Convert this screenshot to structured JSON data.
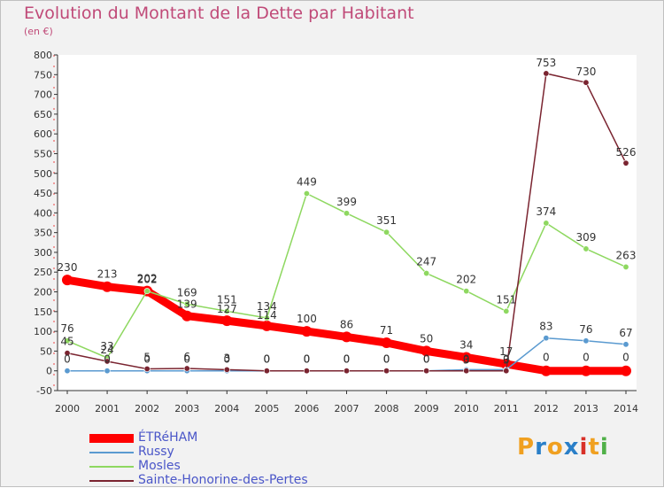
{
  "title": "Evolution du Montant de la Dette par Habitant",
  "subtitle": "(en €)",
  "logo": {
    "letters": [
      "P",
      "r",
      "o",
      "x",
      "i",
      "t",
      "i"
    ],
    "colors": [
      "#f0a020",
      "#2a7fc8",
      "#f0a020",
      "#2a7fc8",
      "#d83028",
      "#f0a020",
      "#50b048"
    ]
  },
  "chart_data": {
    "type": "line",
    "title": "Evolution du Montant de la Dette par Habitant",
    "subtitle": "(en €)",
    "xlabel": "",
    "ylabel": "",
    "x": [
      "2000",
      "2001",
      "2002",
      "2003",
      "2004",
      "2005",
      "2006",
      "2007",
      "2008",
      "2009",
      "2010",
      "2011",
      "2012",
      "2013",
      "2014"
    ],
    "ylim": [
      -50,
      800
    ],
    "yticks": [
      "-50",
      "0",
      "50",
      "100",
      "150",
      "200",
      "250",
      "300",
      "350",
      "400",
      "450",
      "500",
      "550",
      "600",
      "650",
      "700",
      "750",
      "800"
    ],
    "grid": false,
    "legend_position": "bottom-left",
    "series": [
      {
        "name": "ÉTRéHAM",
        "color": "#ff0000",
        "values": [
          230,
          213,
          202,
          139,
          127,
          114,
          100,
          86,
          71,
          50,
          34,
          17,
          0,
          0,
          0
        ],
        "labels": [
          "230",
          "213",
          "202",
          "139",
          "127",
          "114",
          "100",
          "86",
          "71",
          "50",
          "34",
          "17",
          "0",
          "0",
          "0"
        ]
      },
      {
        "name": "Russy",
        "color": "#5a9ad0",
        "values": [
          0,
          0,
          0,
          0,
          0,
          0,
          0,
          0,
          0,
          0,
          3,
          3,
          83,
          76,
          67
        ],
        "labels": [
          "0",
          "0",
          "0",
          "0",
          "0",
          "0",
          "0",
          "0",
          "0",
          "0",
          "3",
          "3",
          "83",
          "76",
          "67"
        ]
      },
      {
        "name": "Mosles",
        "color": "#8ed860",
        "values": [
          76,
          33,
          202,
          169,
          151,
          134,
          449,
          399,
          351,
          247,
          202,
          151,
          374,
          309,
          263
        ],
        "labels": [
          "76",
          "33",
          "202",
          "169",
          "151",
          "134",
          "449",
          "399",
          "351",
          "247",
          "202",
          "151",
          "374",
          "309",
          "263"
        ]
      },
      {
        "name": "Sainte-Honorine-des-Pertes",
        "color": "#7a2430",
        "values": [
          45,
          24,
          5,
          6,
          3,
          0,
          0,
          0,
          0,
          0,
          0,
          0,
          753,
          730,
          526
        ],
        "labels": [
          "45",
          "24",
          "5",
          "6",
          "3",
          "0",
          "0",
          "0",
          "0",
          "0",
          "0",
          "0",
          "753",
          "730",
          "526"
        ]
      }
    ]
  }
}
